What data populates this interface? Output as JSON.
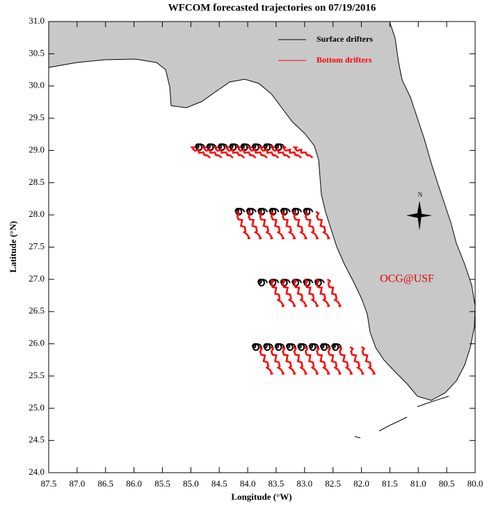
{
  "chart_data": {
    "type": "map",
    "title": "WFCOM forecasted trajectories on 07/19/2016",
    "x_label": "Longitude (°W)",
    "y_label": "Latitude (°N)",
    "annotation": "OCG@USF",
    "compass_label": "N",
    "xlim": [
      87.5,
      80.0
    ],
    "ylim": [
      24.0,
      31.0
    ],
    "xticks": [
      87.5,
      {
        "value": 87,
        "label": "87.0"
      },
      86.5,
      {
        "value": 86,
        "label": "86.0"
      },
      85.5,
      {
        "value": 85,
        "label": "85.0"
      },
      84.5,
      {
        "value": 84,
        "label": "84.0"
      },
      83.5,
      {
        "value": 83,
        "label": "83.0"
      },
      82.5,
      {
        "value": 82,
        "label": "82.0"
      },
      81.5,
      {
        "value": 81,
        "label": "81.0"
      },
      80.5,
      {
        "value": 80,
        "label": "80.0"
      }
    ],
    "yticks": [
      {
        "value": 24,
        "label": "24.0"
      },
      24.5,
      {
        "value": 25,
        "label": "25.0"
      },
      25.5,
      {
        "value": 26,
        "label": "26.0"
      },
      26.5,
      {
        "value": 27,
        "label": "27.0"
      },
      27.5,
      {
        "value": 28,
        "label": "28.0"
      },
      28.5,
      {
        "value": 29,
        "label": "29.0"
      },
      29.5,
      {
        "value": 30,
        "label": "30.0"
      },
      30.5,
      {
        "value": 31,
        "label": "31.0"
      }
    ],
    "series": [
      {
        "name": "Surface drifters",
        "color": "#000000",
        "x": [
          84.9,
          84.7,
          84.5,
          84.3,
          84.1,
          83.9,
          83.7,
          83.5,
          84.2,
          84.0,
          83.8,
          83.6,
          83.4,
          83.2,
          83.0,
          83.8,
          83.6,
          83.4,
          83.2,
          83.0,
          82.8,
          83.9,
          83.7,
          83.5,
          83.3,
          83.1,
          82.9,
          82.7,
          82.5
        ],
        "y": [
          29.1,
          29.1,
          29.1,
          29.1,
          29.1,
          29.1,
          29.1,
          29.1,
          28.1,
          28.1,
          28.1,
          28.1,
          28.1,
          28.1,
          28.1,
          27.0,
          27.0,
          27.0,
          27.0,
          27.0,
          27.0,
          26.0,
          26.0,
          26.0,
          26.0,
          26.0,
          26.0,
          26.0,
          26.0
        ]
      },
      {
        "name": "Bottom drifters",
        "color": "#ff0000",
        "x": [
          85.0,
          84.8,
          84.6,
          84.4,
          84.2,
          84.0,
          83.8,
          83.6,
          83.4,
          83.2,
          84.2,
          84.0,
          83.8,
          83.6,
          83.4,
          83.2,
          83.0,
          82.8,
          83.6,
          83.4,
          83.2,
          83.0,
          82.8,
          82.6,
          83.8,
          83.6,
          83.4,
          83.2,
          83.0,
          82.8,
          82.6,
          82.4,
          82.2,
          82.0
        ],
        "y": [
          29.05,
          29.05,
          29.05,
          29.05,
          29.05,
          29.05,
          29.05,
          29.05,
          29.05,
          29.05,
          28.05,
          28.05,
          28.05,
          28.05,
          28.05,
          28.05,
          28.05,
          28.05,
          27.0,
          27.0,
          27.0,
          27.0,
          27.0,
          27.0,
          25.95,
          25.95,
          25.95,
          25.95,
          25.95,
          25.95,
          25.95,
          25.95,
          25.95,
          25.95
        ]
      }
    ]
  }
}
